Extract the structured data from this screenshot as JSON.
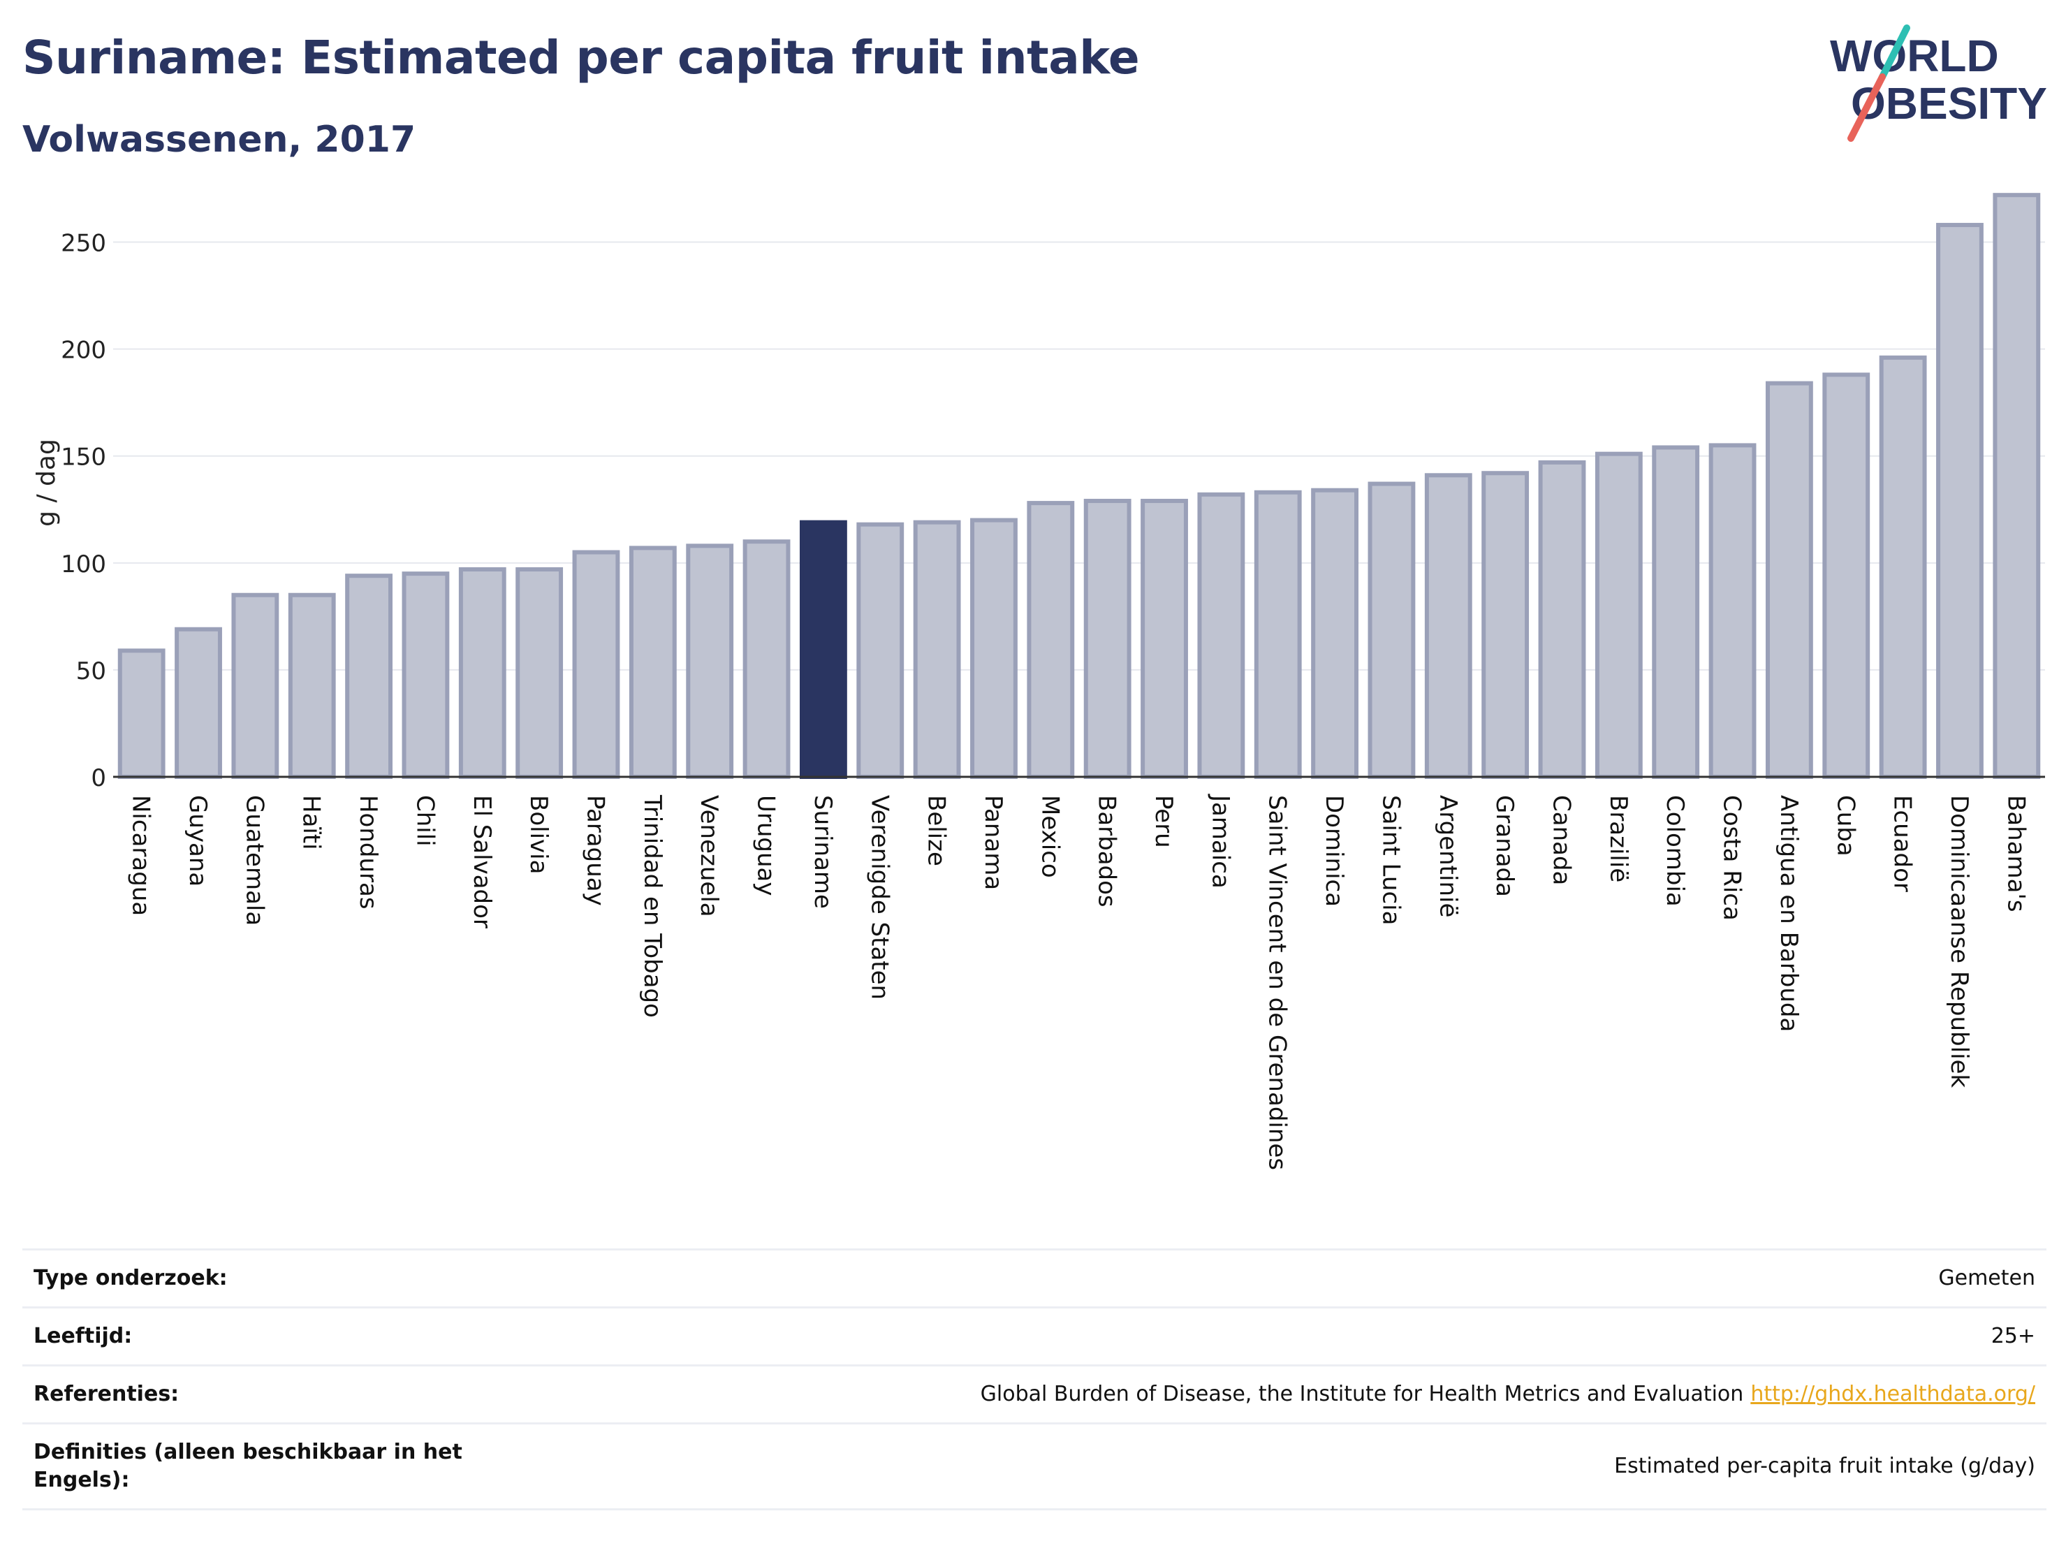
{
  "header": {
    "title": "Suriname: Estimated per capita fruit intake",
    "subtitle": "Volwassenen, 2017"
  },
  "logo": {
    "line1": "WORLD",
    "line2": "OBESITY",
    "stripe_teal": "#2ebfb3",
    "stripe_red": "#e8635a"
  },
  "colors": {
    "bar": "#bfc3d1",
    "bar_border": "#9aa0b8",
    "highlight": "#2a3561",
    "grid": "#e6e8ee",
    "text": "#2a3561"
  },
  "chart_data": {
    "type": "bar",
    "title": "",
    "xlabel": "",
    "ylabel": "g / dag",
    "ylim": [
      0,
      275
    ],
    "yticks": [
      0,
      50,
      100,
      150,
      200,
      250
    ],
    "grid": true,
    "highlight": "Suriname",
    "categories": [
      "Nicaragua",
      "Guyana",
      "Guatemala",
      "Haïti",
      "Honduras",
      "Chili",
      "El Salvador",
      "Bolivia",
      "Paraguay",
      "Trinidad en Tobago",
      "Venezuela",
      "Uruguay",
      "Suriname",
      "Verenigde Staten",
      "Belize",
      "Panama",
      "Mexico",
      "Barbados",
      "Peru",
      "Jamaica",
      "Saint Vincent en de Grenadines",
      "Dominica",
      "Saint Lucia",
      "Argentinië",
      "Granada",
      "Canada",
      "Brazilië",
      "Colombia",
      "Costa Rica",
      "Antigua en Barbuda",
      "Cuba",
      "Ecuador",
      "Dominicaanse Republiek",
      "Bahama's"
    ],
    "values": [
      59,
      69,
      85,
      85,
      94,
      95,
      97,
      97,
      105,
      107,
      108,
      110,
      119,
      118,
      119,
      120,
      128,
      129,
      129,
      132,
      133,
      134,
      137,
      141,
      142,
      147,
      151,
      154,
      155,
      184,
      188,
      196,
      258,
      272
    ]
  },
  "meta": [
    {
      "label": "Type onderzoek:",
      "value": "Gemeten"
    },
    {
      "label": "Leeftijd:",
      "value": "25+"
    },
    {
      "label": "Referenties:",
      "value": "Global Burden of Disease, the Institute for Health Metrics and Evaluation",
      "link": "http://ghdx.healthdata.org/"
    },
    {
      "label": "Definities (alleen beschikbaar in het Engels):",
      "value": "Estimated per-capita fruit intake (g/day)"
    }
  ]
}
